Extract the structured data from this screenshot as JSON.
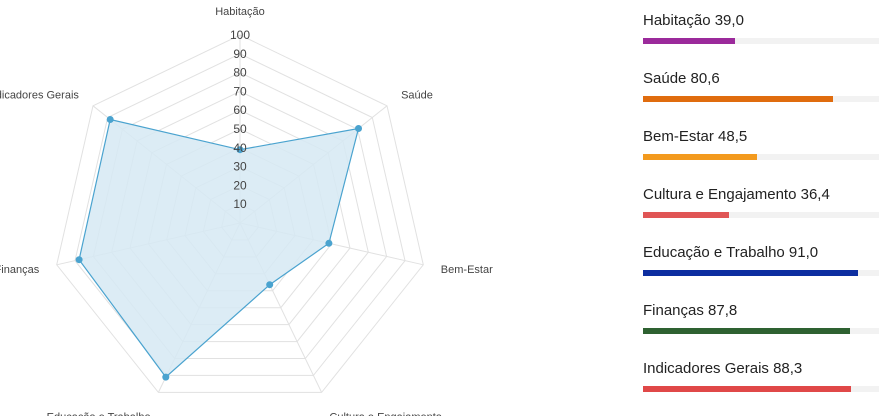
{
  "chart_data": {
    "type": "radar",
    "scale": {
      "min": 0,
      "max": 100,
      "ticks": [
        10,
        20,
        30,
        40,
        50,
        60,
        70,
        80,
        90,
        100
      ]
    },
    "grid": true,
    "series_color": "#4aa3cf",
    "fill_color": "#d6e9f3",
    "axes": [
      {
        "label": "Habitação",
        "value": 39.0,
        "value_text": "39,0",
        "color": "#9b2a9b"
      },
      {
        "label": "Saúde",
        "value": 80.6,
        "value_text": "80,6",
        "color": "#e06c0e"
      },
      {
        "label": "Bem-Estar",
        "value": 48.5,
        "value_text": "48,5",
        "color": "#f39a1e"
      },
      {
        "label": "Cultura e Engajamento",
        "value": 36.4,
        "value_text": "36,4",
        "color": "#e05555"
      },
      {
        "label": "Educação e Trabalho",
        "value": 91.0,
        "value_text": "91,0",
        "color": "#0d2ea0"
      },
      {
        "label": "Finanças",
        "value": 87.8,
        "value_text": "87,8",
        "color": "#2e6131"
      },
      {
        "label": "Indicadores Gerais",
        "value": 88.3,
        "value_text": "88,3",
        "color": "#e04848"
      }
    ]
  }
}
